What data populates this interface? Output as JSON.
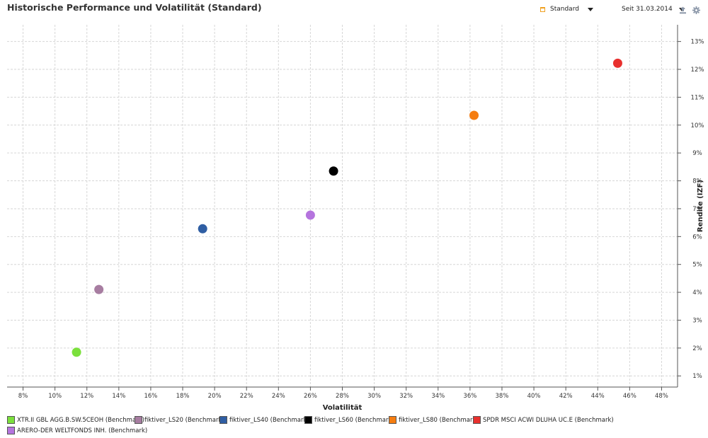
{
  "header": {
    "title": "Historische Performance und Volatilität (Standard)",
    "view_select": "Standard",
    "period_select": "Seit 31.03.2014",
    "icons": [
      "calendar-icon",
      "export-icon",
      "gear-icon"
    ]
  },
  "colors": {
    "accent": "#f0a020",
    "grid": "#d6d6d6",
    "axis": "#555555"
  },
  "chart_data": {
    "type": "scatter",
    "title": "Historische Performance und Volatilität (Standard)",
    "xlabel": "Volatilität",
    "ylabel": "Rendite (IZF)",
    "xlim": [
      7,
      49
    ],
    "ylim": [
      0.6,
      13.6
    ],
    "grid": true,
    "legend": "bottom",
    "x_ticks": [
      8,
      10,
      12,
      14,
      16,
      18,
      20,
      22,
      24,
      26,
      28,
      30,
      32,
      34,
      36,
      38,
      40,
      42,
      44,
      46,
      48
    ],
    "x_tick_labels": [
      "8%",
      "10%",
      "12%",
      "14%",
      "16%",
      "18%",
      "20%",
      "22%",
      "24%",
      "26%",
      "28%",
      "30%",
      "32%",
      "34%",
      "36%",
      "38%",
      "40%",
      "42%",
      "44%",
      "46%",
      "48%"
    ],
    "y_ticks": [
      1,
      2,
      3,
      4,
      5,
      6,
      7,
      8,
      9,
      10,
      11,
      12,
      13
    ],
    "y_tick_labels": [
      "1%",
      "2%",
      "3%",
      "4%",
      "5%",
      "6%",
      "7%",
      "8%",
      "9%",
      "10%",
      "11%",
      "12%",
      "13%"
    ],
    "series": [
      {
        "name": "XTR.II GBL AGG.B.SW.5CEOH (Benchmark)",
        "color": "#7be03c",
        "x": 11.35,
        "y": 1.85
      },
      {
        "name": "fiktiver_LS20 (Benchmark)",
        "color": "#a77da1",
        "x": 12.75,
        "y": 4.1
      },
      {
        "name": "fiktiver_LS40 (Benchmark)",
        "color": "#2f5ea3",
        "x": 19.25,
        "y": 6.28
      },
      {
        "name": "fiktiver_LS60 (Benchmark)",
        "color": "#000000",
        "x": 27.45,
        "y": 8.35
      },
      {
        "name": "fiktiver_LS80 (Benchmark)",
        "color": "#f57d10",
        "x": 36.25,
        "y": 10.35
      },
      {
        "name": "SPDR MSCI ACWI DLUHA UC.E (Benchmark)",
        "color": "#e8302e",
        "x": 45.25,
        "y": 12.22
      },
      {
        "name": "ARERO-DER WELTFONDS INH. (Benchmark)",
        "color": "#b574de",
        "x": 26.0,
        "y": 6.77
      }
    ]
  }
}
